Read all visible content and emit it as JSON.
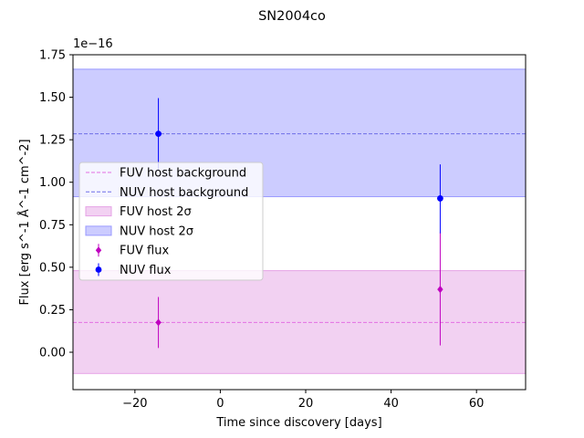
{
  "chart_data": {
    "type": "scatter",
    "title": "SN2004co",
    "xlabel": "Time since discovery [days]",
    "ylabel": "Flux [erg s^-1 Å^-1 cm^-2]",
    "offset_text": "1e−16",
    "xlim": [
      -34.5,
      71.5
    ],
    "ylim": [
      -0.22,
      1.75
    ],
    "x_ticks": [
      -20,
      0,
      20,
      40,
      60
    ],
    "x_tick_labels": [
      "−20",
      "0",
      "20",
      "40",
      "60"
    ],
    "y_ticks": [
      0.0,
      0.25,
      0.5,
      0.75,
      1.0,
      1.25,
      1.5,
      1.75
    ],
    "y_tick_labels": [
      "0.00",
      "0.25",
      "0.50",
      "0.75",
      "1.00",
      "1.25",
      "1.50",
      "1.75"
    ],
    "grid": false,
    "legend_position": "center-left",
    "colors": {
      "fuv": "#bf00bf",
      "nuv": "#0000ff",
      "fuv_band": "#e6a3e6",
      "nuv_band": "#9999ff",
      "fuv_line": "#e36fe3",
      "nuv_line": "#6f6fe8"
    },
    "series": [
      {
        "name": "FUV host background",
        "kind": "hline",
        "y": 0.175
      },
      {
        "name": "NUV host background",
        "kind": "hline",
        "y": 1.285
      },
      {
        "name": "FUV host 2σ",
        "kind": "band",
        "y_low": -0.125,
        "y_high": 0.48
      },
      {
        "name": "NUV host 2σ",
        "kind": "band",
        "y_low": 0.915,
        "y_high": 1.665
      },
      {
        "name": "FUV flux",
        "kind": "errorbar",
        "marker": "diamond",
        "points": [
          {
            "x": -14.5,
            "y": 0.175,
            "y_low": 0.025,
            "y_high": 0.325
          },
          {
            "x": 51.5,
            "y": 0.37,
            "y_low": 0.04,
            "y_high": 0.705
          }
        ]
      },
      {
        "name": "NUV flux",
        "kind": "errorbar",
        "marker": "circle",
        "points": [
          {
            "x": -14.5,
            "y": 1.285,
            "y_low": 1.075,
            "y_high": 1.495
          },
          {
            "x": 51.5,
            "y": 0.905,
            "y_low": 0.7,
            "y_high": 1.105
          }
        ]
      }
    ],
    "legend_items": [
      {
        "label": "FUV host background"
      },
      {
        "label": "NUV host background"
      },
      {
        "label": "FUV host 2σ"
      },
      {
        "label": "NUV host 2σ"
      },
      {
        "label": "FUV flux"
      },
      {
        "label": "NUV flux"
      }
    ]
  }
}
